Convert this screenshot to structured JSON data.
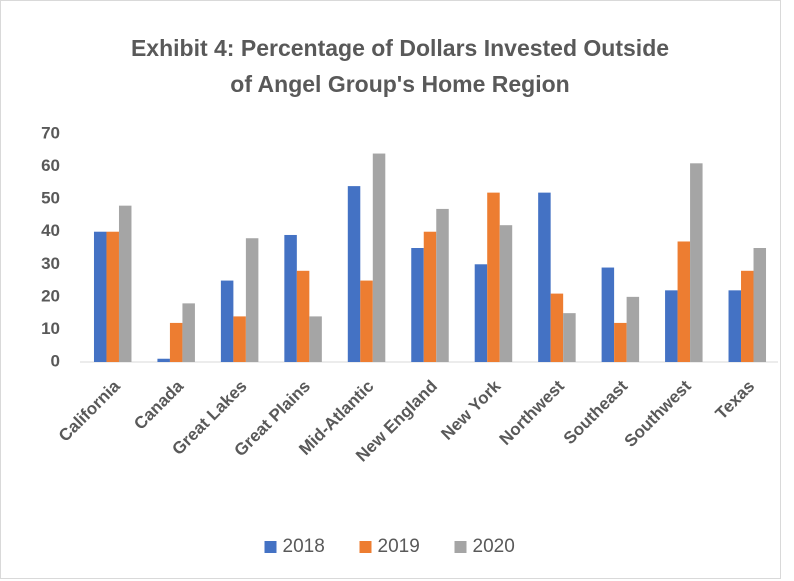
{
  "chart_data": {
    "type": "bar",
    "title": "Exhibit 4: Percentage of Dollars Invested Outside of Angel Group's Home Region",
    "categories": [
      "California",
      "Canada",
      "Great Lakes",
      "Great Plains",
      "Mid-Atlantic",
      "New England",
      "New York",
      "Northwest",
      "Southeast",
      "Southwest",
      "Texas"
    ],
    "series": [
      {
        "name": "2018",
        "color": "#4472c4",
        "values": [
          40,
          1,
          25,
          39,
          54,
          35,
          30,
          52,
          29,
          22,
          22
        ]
      },
      {
        "name": "2019",
        "color": "#ed7d31",
        "values": [
          40,
          12,
          14,
          28,
          25,
          40,
          52,
          21,
          12,
          37,
          28
        ]
      },
      {
        "name": "2020",
        "color": "#a5a5a5",
        "values": [
          48,
          18,
          38,
          14,
          64,
          47,
          42,
          15,
          20,
          61,
          35
        ]
      }
    ],
    "ylim": [
      0,
      70
    ],
    "yticks": [
      0,
      10,
      20,
      30,
      40,
      50,
      60,
      70
    ],
    "grid": false,
    "legend": "bottom"
  }
}
